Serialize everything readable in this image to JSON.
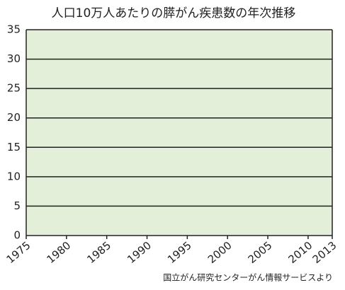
{
  "chart_data": {
    "type": "line",
    "title": "人口10万人あたりの膵がん疾患数の年次推移",
    "source": "国立がん研究センターがん情報サービスより",
    "series": [],
    "xlim": [
      1975,
      2013
    ],
    "xticks": [
      1975,
      1980,
      1985,
      1990,
      1995,
      2000,
      2005,
      2010,
      2013
    ],
    "ylim": [
      0,
      35
    ],
    "yticks": [
      0,
      5,
      10,
      15,
      20,
      25,
      30,
      35
    ],
    "grid": true,
    "plot_background": "#e3efd9"
  }
}
